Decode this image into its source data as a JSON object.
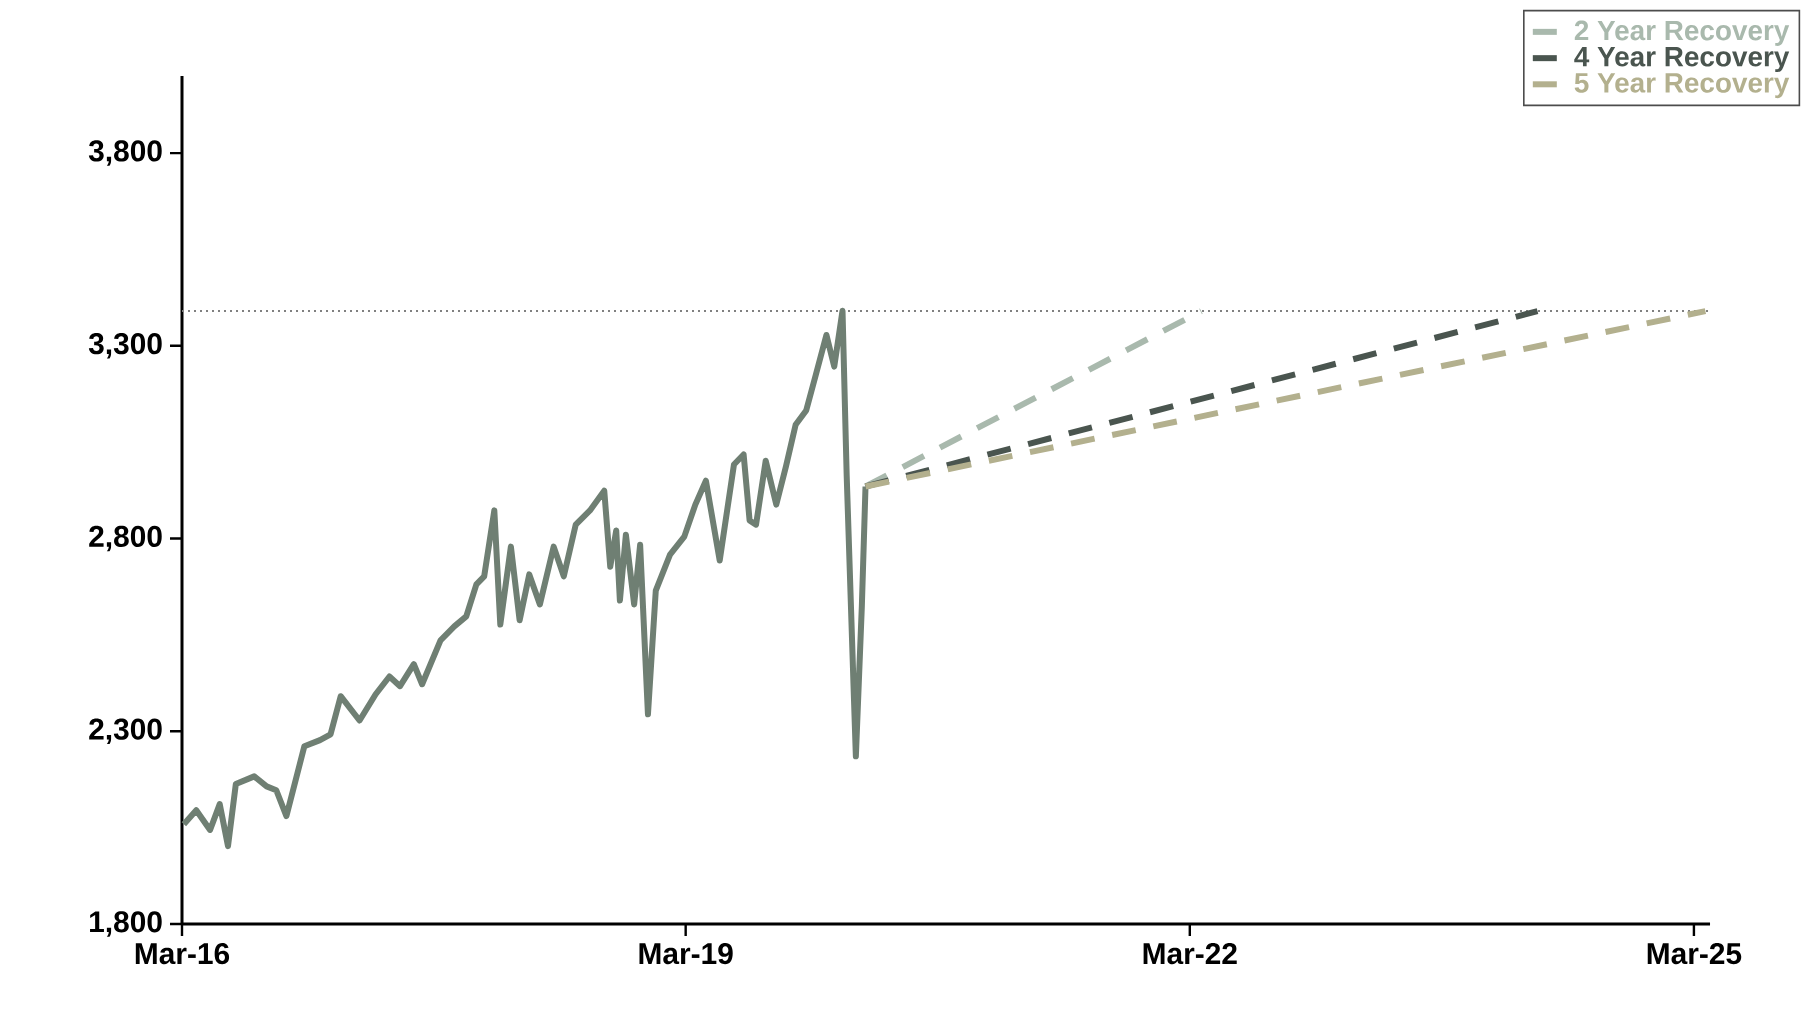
{
  "chart_data": {
    "type": "line",
    "x": [
      "2016-03-05",
      "2016-04-01",
      "2016-05-01",
      "2016-05-22",
      "2016-06-09",
      "2016-06-26",
      "2016-08-05",
      "2016-09-01",
      "2016-09-22",
      "2016-10-14",
      "2016-11-22",
      "2016-12-26",
      "2017-01-18",
      "2017-02-09",
      "2017-03-22",
      "2017-04-26",
      "2017-05-26",
      "2017-06-18",
      "2017-07-18",
      "2017-08-05",
      "2017-09-14",
      "2017-10-14",
      "2017-11-09",
      "2017-12-01",
      "2017-12-18",
      "2018-01-09",
      "2018-01-22",
      "2018-02-14",
      "2018-03-05",
      "2018-03-26",
      "2018-04-18",
      "2018-05-18",
      "2018-06-09",
      "2018-07-05",
      "2018-08-05",
      "2018-09-05",
      "2018-09-18",
      "2018-10-01",
      "2018-10-09",
      "2018-10-22",
      "2018-11-09",
      "2018-11-22",
      "2018-12-09",
      "2018-12-26",
      "2019-01-26",
      "2019-02-26",
      "2019-03-22",
      "2019-04-14",
      "2019-05-14",
      "2019-06-14",
      "2019-07-05",
      "2019-07-18",
      "2019-08-01",
      "2019-08-22",
      "2019-09-14",
      "2019-10-05",
      "2019-10-26",
      "2019-11-18",
      "2019-12-09",
      "2020-01-01",
      "2020-01-18",
      "2020-02-05",
      "2020-02-14",
      "2020-03-01",
      "2020-03-05",
      "2020-03-18",
      "2020-03-26"
    ],
    "series": [
      {
        "color": "#6f7f73",
        "line_style": "solid",
        "values": [
          2059,
          2095,
          2044,
          2111,
          2002,
          2163,
          2183,
          2157,
          2147,
          2080,
          2261,
          2277,
          2292,
          2391,
          2328,
          2396,
          2442,
          2417,
          2474,
          2422,
          2536,
          2572,
          2598,
          2681,
          2702,
          2873,
          2577,
          2779,
          2588,
          2707,
          2629,
          2779,
          2702,
          2836,
          2873,
          2924,
          2727,
          2821,
          2639,
          2810,
          2629,
          2784,
          2344,
          2665,
          2758,
          2805,
          2888,
          2950,
          2743,
          2992,
          3018,
          2847,
          2836,
          3002,
          2888,
          2987,
          3095,
          3132,
          3225,
          3328,
          3246,
          3391,
          2966,
          2380,
          2235,
          2624,
          2935
        ]
      },
      {
        "name": "2 Year Recovery",
        "color": "#a9b9ad",
        "line_style": "dashed",
        "x": [
          "2020-03-26",
          "2022-03-26"
        ],
        "values": [
          2935,
          3390
        ]
      },
      {
        "name": "4 Year Recovery",
        "color": "#4a554f",
        "line_style": "dashed",
        "x": [
          "2020-03-26",
          "2024-03-26"
        ],
        "values": [
          2935,
          3390
        ]
      },
      {
        "name": "5 Year Recovery",
        "color": "#b3b08e",
        "line_style": "dashed",
        "x": [
          "2020-03-26",
          "2025-03-26"
        ],
        "values": [
          2935,
          3390
        ]
      }
    ],
    "xlim": [
      "2016-03-01",
      "2025-04-05"
    ],
    "xticks": [
      {
        "value": "2016-03-01",
        "label": "Mar-16"
      },
      {
        "value": "2019-03-01",
        "label": "Mar-19"
      },
      {
        "value": "2022-03-01",
        "label": "Mar-22"
      },
      {
        "value": "2025-03-01",
        "label": "Mar-25"
      }
    ],
    "ylim": [
      1800,
      4000
    ],
    "yticks": [
      {
        "value": 1800,
        "label": "1,800"
      },
      {
        "value": 2300,
        "label": "2,300"
      },
      {
        "value": 2800,
        "label": "2,800"
      },
      {
        "value": 3300,
        "label": "3,300"
      },
      {
        "value": 3800,
        "label": "3,800"
      }
    ],
    "ref_lines": [
      {
        "axis": "y",
        "value": 3390,
        "line_style": "dotted",
        "color": "#808080"
      }
    ],
    "legend": "top right",
    "grid": false,
    "marker": "none"
  }
}
